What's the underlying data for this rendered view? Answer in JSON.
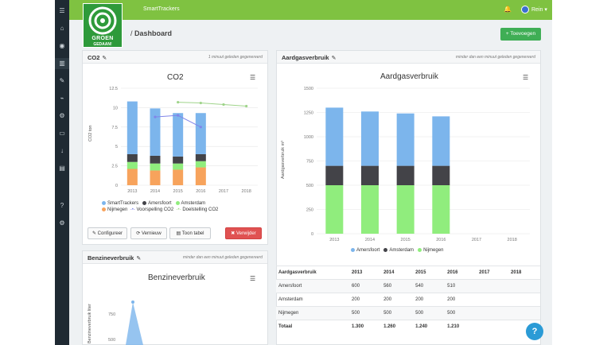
{
  "app": {
    "name": "SmartTrackers",
    "user": "Rein",
    "logo_line1": "GROEN",
    "logo_line2": "GEDAAN!"
  },
  "sidebar": {
    "icons": [
      "menu-icon",
      "home-icon",
      "dashboard-icon",
      "chart-icon",
      "tools-icon",
      "line-chart-icon",
      "gear-icon",
      "folder-icon",
      "download-icon",
      "document-icon",
      "help-icon",
      "settings-icon"
    ]
  },
  "page": {
    "breadcrumb_sep": "/",
    "breadcrumb": "Dashboard",
    "add_button": "+ Toevoegen"
  },
  "co2": {
    "title": "CO2",
    "meta": "1 minuut geleden gegenereerd",
    "chart_title": "CO2",
    "buttons": {
      "configure": "Configureer",
      "refresh": "Vernieuw",
      "table": "Toon tabel",
      "delete": "Verwijder"
    },
    "chart_data": {
      "type": "bar",
      "title": "CO2",
      "ylabel": "CO2 ton",
      "ylim": [
        0,
        12.5
      ],
      "yticks": [
        "0",
        "2.5",
        "5",
        "7.5",
        "10",
        "12.5"
      ],
      "categories": [
        "2013",
        "2014",
        "2015",
        "2016",
        "2017",
        "2018"
      ],
      "series": [
        {
          "name": "SmartTrackers",
          "color": "#7cb5ec",
          "values": [
            6.8,
            6.1,
            5.6,
            5.3,
            null,
            null
          ]
        },
        {
          "name": "Amersfoort",
          "color": "#434348",
          "values": [
            1.0,
            1.0,
            0.9,
            0.9,
            null,
            null
          ]
        },
        {
          "name": "Amsterdam",
          "color": "#90ed7d",
          "values": [
            0.9,
            0.9,
            0.8,
            0.8,
            null,
            null
          ]
        },
        {
          "name": "Nijmegen",
          "color": "#f7a35c",
          "values": [
            2.1,
            1.9,
            2.0,
            2.3,
            null,
            null
          ]
        },
        {
          "name": "Voorspelling CO2",
          "type": "line",
          "color": "#8085e9",
          "values": [
            null,
            8.8,
            9.0,
            7.5,
            null,
            null
          ]
        },
        {
          "name": "Doelstelling CO2",
          "type": "line",
          "color": "#9fd48a",
          "values": [
            null,
            null,
            10.7,
            10.6,
            10.4,
            10.2
          ]
        }
      ]
    }
  },
  "gas": {
    "title": "Aardgasverbruik",
    "meta": "minder dan een minuut geleden gegenereerd",
    "chart_title": "Aardgasverbruik",
    "chart_data": {
      "type": "bar",
      "title": "Aardgasverbruik",
      "ylabel": "Aardgasverbruik m³",
      "ylim": [
        0,
        1500
      ],
      "yticks": [
        "0",
        "250",
        "500",
        "750",
        "1000",
        "1250",
        "1500"
      ],
      "categories": [
        "2013",
        "2014",
        "2015",
        "2016",
        "2017",
        "2018"
      ],
      "series": [
        {
          "name": "Amersfoort",
          "color": "#7cb5ec",
          "values": [
            600,
            560,
            540,
            510,
            null,
            null
          ]
        },
        {
          "name": "Amsterdam",
          "color": "#434348",
          "values": [
            200,
            200,
            200,
            200,
            null,
            null
          ]
        },
        {
          "name": "Nijmegen",
          "color": "#90ed7d",
          "values": [
            500,
            500,
            500,
            500,
            null,
            null
          ]
        }
      ]
    },
    "table": {
      "header": [
        "Aardgasverbruik",
        "2013",
        "2014",
        "2015",
        "2016",
        "2017",
        "2018"
      ],
      "rows": [
        [
          "Amersfoort",
          "600",
          "560",
          "540",
          "510",
          "",
          ""
        ],
        [
          "Amsterdam",
          "200",
          "200",
          "200",
          "200",
          "",
          ""
        ],
        [
          "Nijmegen",
          "500",
          "500",
          "500",
          "500",
          "",
          ""
        ],
        [
          "Totaal",
          "1.300",
          "1.260",
          "1.240",
          "1.210",
          "",
          ""
        ]
      ]
    }
  },
  "benzine": {
    "title": "Benzineverbruik",
    "meta": "minder dan een minuut geleden gegenereerd",
    "chart_title": "Benzineverbruik",
    "ylabel": "Benzineverbruik liter",
    "yticks": [
      "750",
      "500"
    ]
  }
}
